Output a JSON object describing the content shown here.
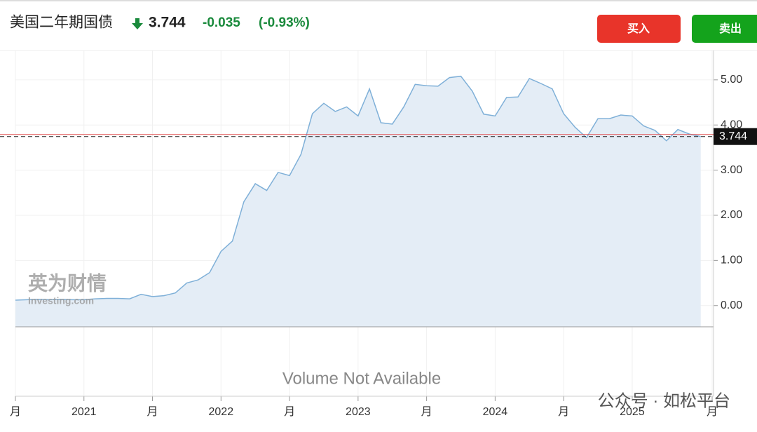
{
  "chart_data": {
    "type": "area",
    "title": "美国二年期国债",
    "last_price": 3.744,
    "change": "-0.035",
    "change_percent": "(-0.93%)",
    "buttons": [
      "买入",
      "卖出"
    ],
    "volume_note": "Volume Not Available",
    "watermark": [
      "英为财情",
      "Investing.com"
    ],
    "footer_note": "公众号 · 如松平台",
    "categories": [
      "月",
      null,
      null,
      null,
      null,
      null,
      "2021",
      null,
      null,
      null,
      null,
      null,
      "月",
      null,
      null,
      null,
      null,
      null,
      "2022",
      null,
      null,
      null,
      null,
      null,
      "月",
      null,
      null,
      null,
      null,
      null,
      "2023",
      null,
      null,
      null,
      null,
      null,
      "月",
      null,
      null,
      null,
      null,
      null,
      "2024",
      null,
      null,
      null,
      null,
      null,
      "月",
      null,
      null,
      null,
      null,
      null,
      "2025",
      null,
      null,
      null,
      null,
      null,
      null,
      "月"
    ],
    "series": [
      {
        "name": "美国二年期国债",
        "color": "#7fb0d8",
        "fill": "#e4edf6",
        "values": [
          0.12,
          0.13,
          0.14,
          0.13,
          0.14,
          0.13,
          0.13,
          0.15,
          0.16,
          0.16,
          0.15,
          0.25,
          0.2,
          0.22,
          0.28,
          0.5,
          0.57,
          0.73,
          1.2,
          1.43,
          2.3,
          2.7,
          2.55,
          2.95,
          2.88,
          3.35,
          4.25,
          4.48,
          4.3,
          4.4,
          4.2,
          4.8,
          4.05,
          4.02,
          4.4,
          4.9,
          4.87,
          4.86,
          5.05,
          5.08,
          4.75,
          4.24,
          4.2,
          4.61,
          4.62,
          5.03,
          4.92,
          4.8,
          4.25,
          3.95,
          3.72,
          4.14,
          4.14,
          4.22,
          4.2,
          3.98,
          3.88,
          3.65,
          3.9,
          3.8,
          3.744,
          null
        ]
      }
    ],
    "reference_line": 3.79,
    "ylim": [
      -0.47,
      5.65
    ],
    "yticks": [
      {
        "value": 0,
        "label": "0.00"
      },
      {
        "value": 1,
        "label": "1.00"
      },
      {
        "value": 2,
        "label": "2.00"
      },
      {
        "value": 3,
        "label": "3.00"
      },
      {
        "value": 4,
        "label": "4.00"
      },
      {
        "value": 5,
        "label": "5.00"
      }
    ],
    "grid": true
  }
}
